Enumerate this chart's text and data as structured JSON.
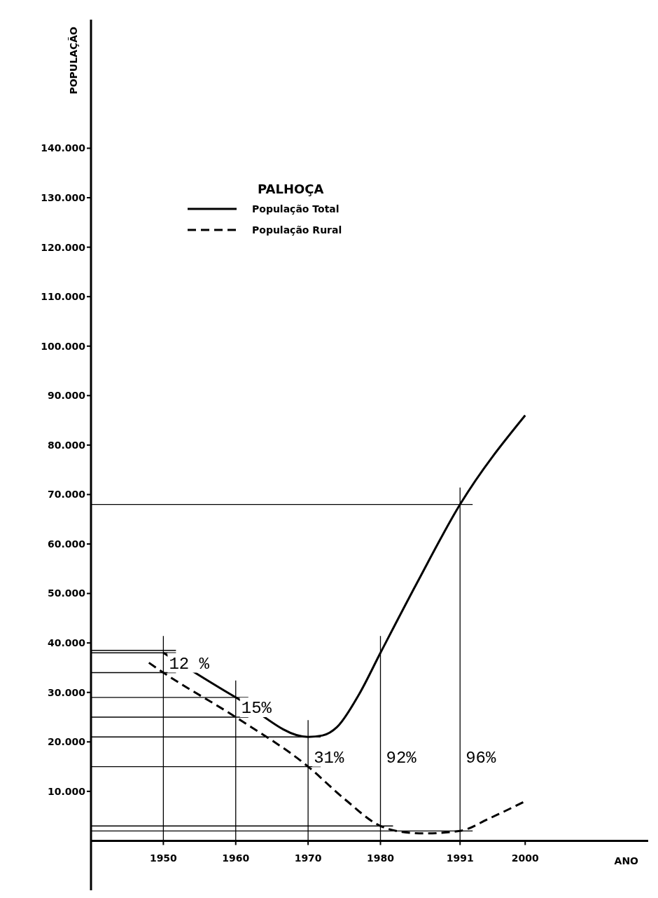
{
  "chart_data": {
    "type": "line",
    "legend_title": "PALHOÇA",
    "xlabel": "ANO",
    "ylabel": "POPULAÇÃO",
    "xlim": [
      1940,
      2017
    ],
    "xticks": [
      1950,
      1960,
      1970,
      1980,
      1991,
      2000
    ],
    "ylim": [
      -10000,
      166000
    ],
    "yticks": [
      {
        "value": 10000,
        "label": "10.000"
      },
      {
        "value": 20000,
        "label": "20.000"
      },
      {
        "value": 30000,
        "label": "30.000"
      },
      {
        "value": 40000,
        "label": "40.000"
      },
      {
        "value": 50000,
        "label": "50.000"
      },
      {
        "value": 60000,
        "label": "60.000"
      },
      {
        "value": 70000,
        "label": "70.000"
      },
      {
        "value": 80000,
        "label": "80.000"
      },
      {
        "value": 90000,
        "label": "90.000"
      },
      {
        "value": 100000,
        "label": "100.000"
      },
      {
        "value": 110000,
        "label": "110.000"
      },
      {
        "value": 120000,
        "label": "120.000"
      },
      {
        "value": 130000,
        "label": "130.000"
      },
      {
        "value": 140000,
        "label": "140.000"
      }
    ],
    "series": [
      {
        "name": "População Total",
        "color": "#000000",
        "line_style": "solid",
        "x": [
          1950,
          1960,
          1970,
          1972,
          1974,
          1977,
          1980,
          1985,
          1991,
          2000
        ],
        "values": [
          38000,
          29000,
          21000,
          21300,
          23000,
          29500,
          38000,
          52000,
          68000,
          86000
        ]
      },
      {
        "name": "População Rural",
        "color": "#000000",
        "line_style": "dashed",
        "x": [
          1948,
          1950,
          1960,
          1970,
          1975,
          1980,
          1983,
          1986,
          1991,
          1995,
          2000
        ],
        "values": [
          36000,
          34000,
          25000,
          15000,
          8500,
          3000,
          1800,
          1500,
          2000,
          4500,
          8000
        ]
      }
    ],
    "ref_lines": [
      {
        "axis": "y",
        "value": 38500
      },
      {
        "axis": "y",
        "value": 38000
      },
      {
        "axis": "y",
        "value": 34000
      },
      {
        "axis": "y",
        "value": 29000
      },
      {
        "axis": "y",
        "value": 25000
      },
      {
        "axis": "y",
        "value": 21000
      },
      {
        "axis": "y",
        "value": 15000
      },
      {
        "axis": "y",
        "value": 3000
      },
      {
        "axis": "y",
        "value": 2000
      },
      {
        "axis": "y",
        "value": 68000
      },
      {
        "axis": "x",
        "value": 1950
      },
      {
        "axis": "x",
        "value": 1960
      },
      {
        "axis": "x",
        "value": 1970
      },
      {
        "axis": "x",
        "value": 1980
      },
      {
        "axis": "x",
        "value": 1991
      }
    ],
    "annotations": [
      {
        "text": "12 %",
        "x": 1950,
        "y": 34000
      },
      {
        "text": "15%",
        "x": 1960,
        "y": 25000
      },
      {
        "text": "31%",
        "x": 1970,
        "y": 15000
      },
      {
        "text": "92%",
        "x": 1980,
        "y": 15000
      },
      {
        "text": "96%",
        "x": 1991,
        "y": 15000
      }
    ],
    "legend": "top",
    "grid": false,
    "marker": "none"
  }
}
